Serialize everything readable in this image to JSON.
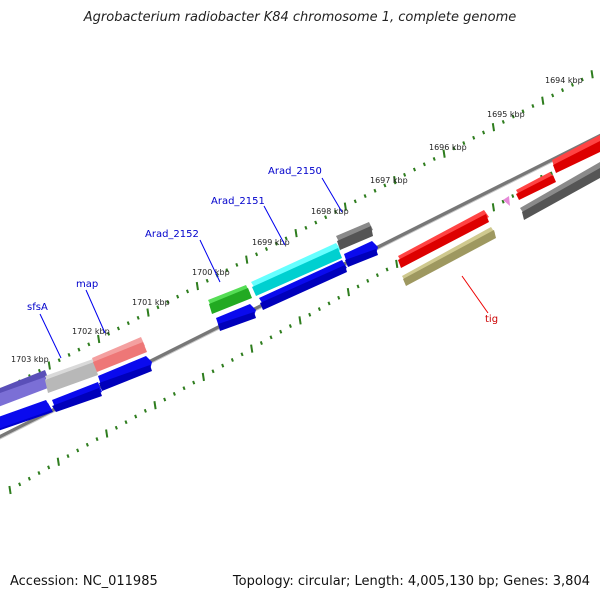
{
  "title": "Agrobacterium radiobacter K84 chromosome 1, complete genome",
  "footer": {
    "accession": "Accession: NC_011985",
    "summary": "Topology: circular; Length: 4,005,130 bp; Genes: 3,804"
  },
  "scale_labels": [
    "1694 kbp",
    "1695 kbp",
    "1696 kbp",
    "1697 kbp",
    "1698 kbp",
    "1699 kbp",
    "1700 kbp",
    "1701 kbp",
    "1702 kbp",
    "1703 kbp"
  ],
  "gene_labels": [
    {
      "name": "sfsA",
      "color": "#0000cc"
    },
    {
      "name": "map",
      "color": "#0000cc"
    },
    {
      "name": "Arad_2152",
      "color": "#0000cc"
    },
    {
      "name": "Arad_2151",
      "color": "#0000cc"
    },
    {
      "name": "Arad_2150",
      "color": "#0000cc"
    },
    {
      "name": "tig",
      "color": "#cc0000"
    }
  ],
  "colors": {
    "backbone": "#888888",
    "ticks": "#2e7d1e",
    "cds": "#0000ee",
    "red_gene": "#ee0000",
    "gray_gene": "#666666",
    "olive_gene": "#b0ab6a",
    "cyan_gene": "#00e5e5",
    "green_gene": "#33cc33",
    "purple_gene": "#7b6fd6",
    "silver_gene": "#bcbcbc",
    "salmon_gene": "#f08080",
    "pink_marker": "#e68ad8"
  }
}
